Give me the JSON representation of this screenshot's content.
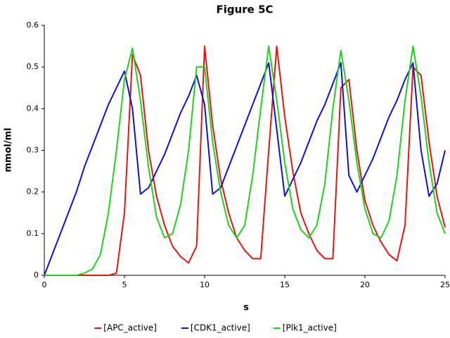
{
  "chart_data": {
    "type": "line",
    "title": "Figure 5C",
    "x_label": "s",
    "y_label": "mmol/ml",
    "x": [
      0,
      0.5,
      1,
      1.5,
      2,
      2.5,
      3,
      3.5,
      4,
      4.5,
      5,
      5.5,
      6,
      6.5,
      7,
      7.5,
      8,
      8.5,
      9,
      9.5,
      10,
      10.5,
      11,
      11.5,
      12,
      12.5,
      13,
      13.5,
      14,
      14.5,
      15,
      15.5,
      16,
      16.5,
      17,
      17.5,
      18,
      18.5,
      19,
      19.5,
      20,
      20.5,
      21,
      21.5,
      22,
      22.5,
      23,
      23.5,
      24,
      24.5,
      25
    ],
    "series": [
      {
        "name": "[APC_active]",
        "color": "#e8140f",
        "values": [
          0,
          0,
          0,
          0,
          0,
          0,
          0,
          0,
          0,
          0.005,
          0.15,
          0.53,
          0.48,
          0.3,
          0.19,
          0.12,
          0.07,
          0.045,
          0.03,
          0.07,
          0.55,
          0.36,
          0.23,
          0.15,
          0.09,
          0.06,
          0.04,
          0.04,
          0.3,
          0.55,
          0.38,
          0.25,
          0.15,
          0.1,
          0.06,
          0.04,
          0.04,
          0.45,
          0.47,
          0.3,
          0.18,
          0.12,
          0.08,
          0.05,
          0.035,
          0.12,
          0.5,
          0.48,
          0.32,
          0.19,
          0.115
        ]
      },
      {
        "name": "[CDK1_active]",
        "color": "#1010d8",
        "values": [
          0,
          0.05,
          0.1,
          0.15,
          0.2,
          0.26,
          0.31,
          0.36,
          0.41,
          0.45,
          0.49,
          0.4,
          0.195,
          0.21,
          0.25,
          0.29,
          0.34,
          0.39,
          0.43,
          0.48,
          0.41,
          0.195,
          0.21,
          0.26,
          0.31,
          0.36,
          0.41,
          0.46,
          0.51,
          0.35,
          0.19,
          0.23,
          0.27,
          0.32,
          0.37,
          0.41,
          0.46,
          0.51,
          0.24,
          0.2,
          0.24,
          0.28,
          0.33,
          0.38,
          0.42,
          0.47,
          0.51,
          0.3,
          0.19,
          0.22,
          0.3
        ]
      },
      {
        "name": "[Plk1_active]",
        "color": "#1ed21e",
        "values": [
          0,
          0,
          0,
          0,
          0,
          0.005,
          0.015,
          0.05,
          0.15,
          0.3,
          0.47,
          0.545,
          0.42,
          0.26,
          0.14,
          0.09,
          0.1,
          0.17,
          0.3,
          0.5,
          0.5,
          0.32,
          0.2,
          0.12,
          0.09,
          0.12,
          0.24,
          0.4,
          0.55,
          0.42,
          0.27,
          0.16,
          0.11,
          0.09,
          0.12,
          0.22,
          0.4,
          0.54,
          0.42,
          0.27,
          0.16,
          0.1,
          0.09,
          0.13,
          0.24,
          0.42,
          0.55,
          0.43,
          0.27,
          0.15,
          0.1
        ]
      }
    ],
    "xlim": [
      0,
      25
    ],
    "xticks": [
      0,
      5,
      10,
      15,
      20,
      25
    ],
    "ylim": [
      0,
      0.6
    ],
    "yticks": [
      0,
      0.1,
      0.2,
      0.3,
      0.4,
      0.5,
      0.6
    ],
    "grid": false,
    "legend": "bottom"
  }
}
